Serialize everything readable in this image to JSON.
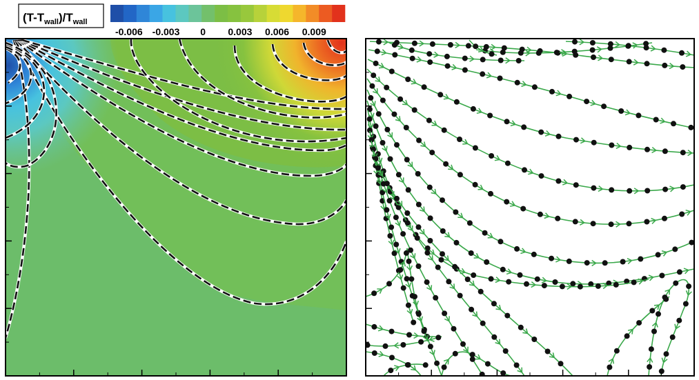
{
  "chart_data": [
    {
      "type": "heatmap",
      "legend": {
        "title_base": "(T-T",
        "title_sub1": "wall",
        "title_mid": ")/T",
        "title_sub2": "wall",
        "tick_labels": [
          "-0.006",
          "-0.003",
          "0",
          "0.003",
          "0.006",
          "0.009"
        ],
        "tick_values": [
          -0.006,
          -0.003,
          0,
          0.003,
          0.006,
          0.009
        ],
        "range": [
          -0.0075,
          0.0115
        ],
        "colors": [
          "#1f4fa8",
          "#2266c6",
          "#2f86d8",
          "#3aa6e6",
          "#47c2df",
          "#5cc8c0",
          "#6cc49a",
          "#73c06b",
          "#7cbe45",
          "#86c23f",
          "#98c83c",
          "#b7d23a",
          "#d7dc35",
          "#efd82f",
          "#f5b62b",
          "#f28c27",
          "#ec5b22",
          "#e2321c"
        ]
      },
      "contour_style": "black dashed with white outline",
      "xlim": [
        0,
        1
      ],
      "ylim": [
        0,
        1
      ],
      "grid": false
    },
    {
      "type": "scatter",
      "description_kind": "streamlines",
      "line_color": "#3aa84a",
      "marker_color": "#111111",
      "xlim": [
        0,
        1
      ],
      "ylim": [
        0,
        1
      ],
      "grid": false
    }
  ]
}
